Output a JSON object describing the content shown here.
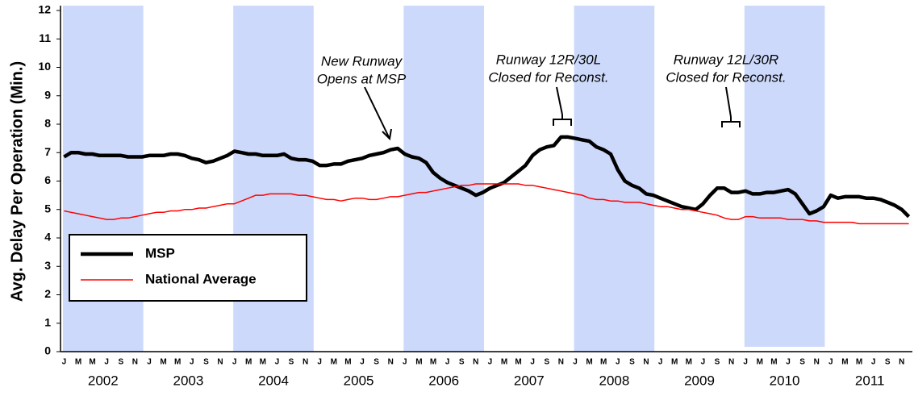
{
  "chart_data": {
    "type": "line",
    "y_label": "Avg. Delay Per Operation (Min.)",
    "categories": [
      "J",
      null,
      "M",
      null,
      "M",
      null,
      "J",
      null,
      "S",
      null,
      "N",
      null,
      "J",
      null,
      "M",
      null,
      "M",
      null,
      "J",
      null,
      "S",
      null,
      "N",
      null,
      "J",
      null,
      "M",
      null,
      "M",
      null,
      "J",
      null,
      "S",
      null,
      "N",
      null,
      "J",
      null,
      "M",
      null,
      "M",
      null,
      "J",
      null,
      "S",
      null,
      "N",
      null,
      "J",
      null,
      "M",
      null,
      "M",
      null,
      "J",
      null,
      "S",
      null,
      "N",
      null,
      "J",
      null,
      "M",
      null,
      "M",
      null,
      "J",
      null,
      "S",
      null,
      "N",
      null,
      "J",
      null,
      "M",
      null,
      "M",
      null,
      "J",
      null,
      "S",
      null,
      "N",
      null,
      "J",
      null,
      "M",
      null,
      "M",
      null,
      "J",
      null,
      "S",
      null,
      "N",
      null,
      "J",
      null,
      "M",
      null,
      "M",
      null,
      "J",
      null,
      "S",
      null,
      "N",
      null,
      "J",
      null,
      "M",
      null,
      "M",
      null,
      "J",
      null,
      "S",
      null,
      "N",
      null
    ],
    "years": [
      "2002",
      "2003",
      "2004",
      "2005",
      "2006",
      "2007",
      "2008",
      "2009",
      "2010",
      "2011"
    ],
    "series": [
      {
        "name": "MSP",
        "color": "#000000",
        "values": [
          6.85,
          7.0,
          7.0,
          6.95,
          6.95,
          6.9,
          6.9,
          6.9,
          6.9,
          6.85,
          6.85,
          6.85,
          6.9,
          6.9,
          6.9,
          6.95,
          6.95,
          6.9,
          6.8,
          6.75,
          6.65,
          6.7,
          6.8,
          6.9,
          7.05,
          7.0,
          6.95,
          6.95,
          6.9,
          6.9,
          6.9,
          6.95,
          6.8,
          6.75,
          6.75,
          6.7,
          6.55,
          6.55,
          6.6,
          6.6,
          6.7,
          6.75,
          6.8,
          6.9,
          6.95,
          7.0,
          7.1,
          7.15,
          6.95,
          6.85,
          6.8,
          6.65,
          6.3,
          6.1,
          5.95,
          5.85,
          5.75,
          5.65,
          5.5,
          5.6,
          5.75,
          5.85,
          5.95,
          6.15,
          6.35,
          6.55,
          6.9,
          7.1,
          7.2,
          7.25,
          7.55,
          7.55,
          7.5,
          7.45,
          7.4,
          7.2,
          7.1,
          6.95,
          6.4,
          6.0,
          5.85,
          5.75,
          5.55,
          5.5,
          5.4,
          5.3,
          5.2,
          5.1,
          5.05,
          5.0,
          5.2,
          5.5,
          5.75,
          5.75,
          5.6,
          5.6,
          5.65,
          5.55,
          5.55,
          5.6,
          5.6,
          5.65,
          5.7,
          5.55,
          5.2,
          4.85,
          4.95,
          5.1,
          5.5,
          5.4,
          5.45,
          5.45,
          5.45,
          5.4,
          5.4,
          5.35,
          5.25,
          5.15,
          5.0,
          4.75
        ]
      },
      {
        "name": "National Average",
        "color": "#ff0000",
        "values": [
          4.95,
          4.9,
          4.85,
          4.8,
          4.75,
          4.7,
          4.65,
          4.65,
          4.7,
          4.7,
          4.75,
          4.8,
          4.85,
          4.9,
          4.9,
          4.95,
          4.95,
          5.0,
          5.0,
          5.05,
          5.05,
          5.1,
          5.15,
          5.2,
          5.2,
          5.3,
          5.4,
          5.5,
          5.5,
          5.55,
          5.55,
          5.55,
          5.55,
          5.5,
          5.5,
          5.45,
          5.4,
          5.35,
          5.35,
          5.3,
          5.35,
          5.4,
          5.4,
          5.35,
          5.35,
          5.4,
          5.45,
          5.45,
          5.5,
          5.55,
          5.6,
          5.6,
          5.65,
          5.7,
          5.75,
          5.8,
          5.85,
          5.85,
          5.9,
          5.9,
          5.9,
          5.9,
          5.9,
          5.9,
          5.9,
          5.85,
          5.85,
          5.8,
          5.75,
          5.7,
          5.65,
          5.6,
          5.55,
          5.5,
          5.4,
          5.35,
          5.35,
          5.3,
          5.3,
          5.25,
          5.25,
          5.25,
          5.2,
          5.15,
          5.1,
          5.1,
          5.05,
          5.0,
          5.0,
          4.95,
          4.9,
          4.85,
          4.8,
          4.7,
          4.65,
          4.65,
          4.75,
          4.75,
          4.7,
          4.7,
          4.7,
          4.7,
          4.65,
          4.65,
          4.65,
          4.6,
          4.6,
          4.55,
          4.55,
          4.55,
          4.55,
          4.55,
          4.5,
          4.5,
          4.5,
          4.5,
          4.5,
          4.5,
          4.5,
          4.5
        ]
      }
    ],
    "ylim": [
      0,
      12
    ],
    "yticks": [
      0,
      1,
      2,
      3,
      4,
      5,
      6,
      7,
      8,
      9,
      10,
      11,
      12
    ],
    "annotations": [
      [
        "New Runway",
        "Opens at MSP"
      ],
      [
        "Runway 12R/30L",
        "Closed for Reconst."
      ],
      [
        "Runway 12L/30R",
        "Closed for Reconst."
      ]
    ],
    "legend": "lower left"
  }
}
